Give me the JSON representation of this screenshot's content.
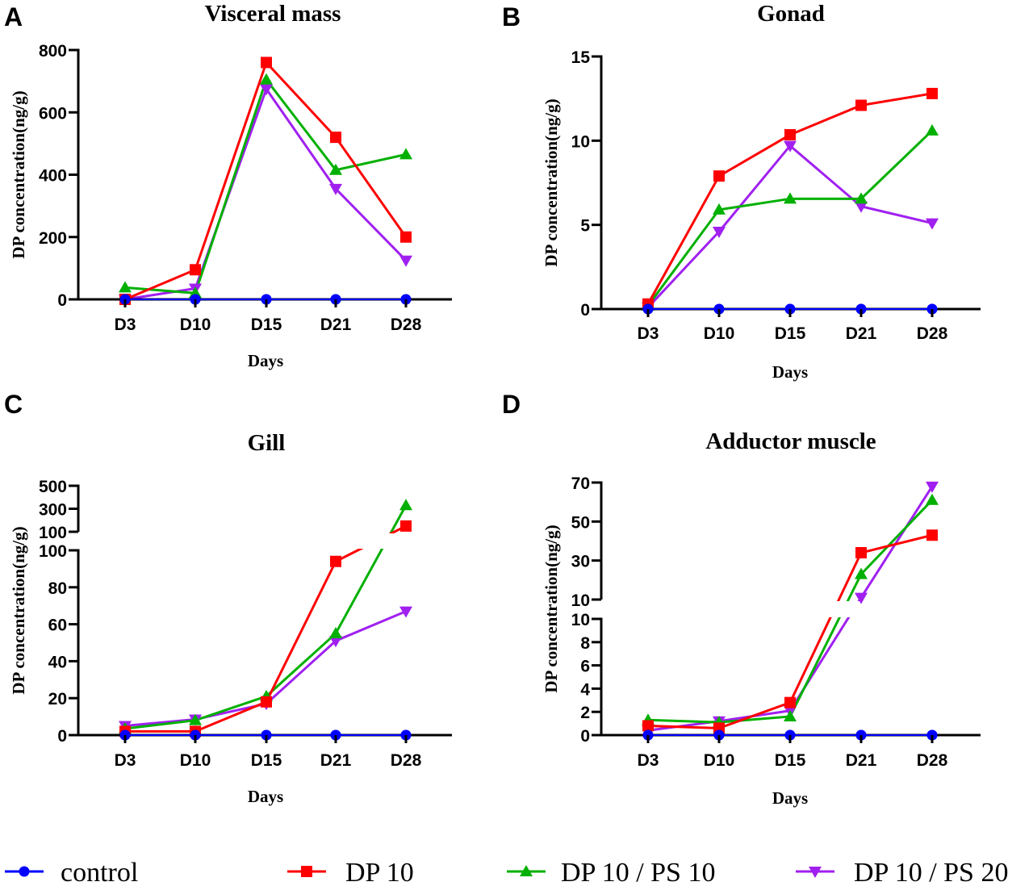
{
  "legend": {
    "position": "bottom",
    "entries": [
      {
        "name": "control",
        "color": "#0000ff",
        "marker": "circle"
      },
      {
        "name": "DP 10",
        "color": "#ff0000",
        "marker": "square"
      },
      {
        "name": "DP 10 / PS 10",
        "color": "#00b000",
        "marker": "triangle-up"
      },
      {
        "name": "DP 10 / PS 20",
        "color": "#a020f0",
        "marker": "triangle-down"
      }
    ]
  },
  "chart_data": [
    {
      "panel": "A",
      "type": "line",
      "title": "Visceral mass",
      "xlabel": "Days",
      "ylabel": "DP concentration(ng/g)",
      "categories": [
        "D3",
        "D10",
        "D15",
        "D21",
        "D28"
      ],
      "y_segments": [
        {
          "range": [
            0,
            800
          ],
          "ticks": [
            0,
            200,
            400,
            600,
            800
          ]
        }
      ],
      "series": [
        {
          "name": "control",
          "values": [
            0,
            0,
            0,
            0,
            0
          ]
        },
        {
          "name": "DP 10",
          "values": [
            0,
            95,
            760,
            520,
            200
          ]
        },
        {
          "name": "DP 10 / PS 10",
          "values": [
            38,
            20,
            705,
            415,
            465
          ]
        },
        {
          "name": "DP 10 / PS 20",
          "values": [
            0,
            35,
            675,
            355,
            125
          ]
        }
      ]
    },
    {
      "panel": "B",
      "type": "line",
      "title": "Gonad",
      "xlabel": "Days",
      "ylabel": "DP concentration(ng/g)",
      "categories": [
        "D3",
        "D10",
        "D15",
        "D21",
        "D28"
      ],
      "y_segments": [
        {
          "range": [
            0,
            15
          ],
          "ticks": [
            0,
            5,
            10,
            15
          ]
        }
      ],
      "series": [
        {
          "name": "control",
          "values": [
            0,
            0,
            0,
            0,
            0
          ]
        },
        {
          "name": "DP 10",
          "values": [
            0.3,
            7.9,
            10.35,
            12.1,
            12.8
          ]
        },
        {
          "name": "DP 10 / PS 10",
          "values": [
            0.2,
            5.9,
            6.55,
            6.55,
            10.6
          ]
        },
        {
          "name": "DP 10 / PS 20",
          "values": [
            0.1,
            4.6,
            9.7,
            6.1,
            5.1
          ]
        }
      ]
    },
    {
      "panel": "C",
      "type": "line",
      "title": "Gill",
      "xlabel": "Days",
      "ylabel": "DP concentration(ng/g)",
      "categories": [
        "D3",
        "D10",
        "D15",
        "D21",
        "D28"
      ],
      "y_segments": [
        {
          "range": [
            0,
            100
          ],
          "ticks": [
            0,
            20,
            40,
            60,
            80,
            100
          ]
        },
        {
          "range": [
            100,
            500
          ],
          "ticks": [
            100,
            300,
            500
          ]
        }
      ],
      "series": [
        {
          "name": "control",
          "values": [
            0,
            0,
            0,
            0,
            0
          ]
        },
        {
          "name": "DP 10",
          "values": [
            2,
            2,
            18,
            94,
            150
          ]
        },
        {
          "name": "DP 10 / PS 10",
          "values": [
            3.5,
            8,
            21,
            55,
            330
          ]
        },
        {
          "name": "DP 10 / PS 20",
          "values": [
            5,
            8.5,
            17,
            51,
            67
          ]
        }
      ]
    },
    {
      "panel": "D",
      "type": "line",
      "title": "Adductor muscle",
      "xlabel": "Days",
      "ylabel": "DP concentration(ng/g)",
      "categories": [
        "D3",
        "D10",
        "D15",
        "D21",
        "D28"
      ],
      "y_segments": [
        {
          "range": [
            0,
            10
          ],
          "ticks": [
            0,
            2,
            4,
            6,
            8,
            10
          ]
        },
        {
          "range": [
            10,
            70
          ],
          "ticks": [
            10,
            30,
            50,
            70
          ]
        }
      ],
      "series": [
        {
          "name": "control",
          "values": [
            0,
            0,
            0,
            0,
            0
          ]
        },
        {
          "name": "DP 10",
          "values": [
            0.8,
            0.6,
            2.8,
            34,
            43
          ]
        },
        {
          "name": "DP 10 / PS 10",
          "values": [
            1.3,
            1.1,
            1.6,
            23,
            61
          ]
        },
        {
          "name": "DP 10 / PS 20",
          "values": [
            0.4,
            1.2,
            2.1,
            11,
            68
          ]
        }
      ]
    }
  ]
}
